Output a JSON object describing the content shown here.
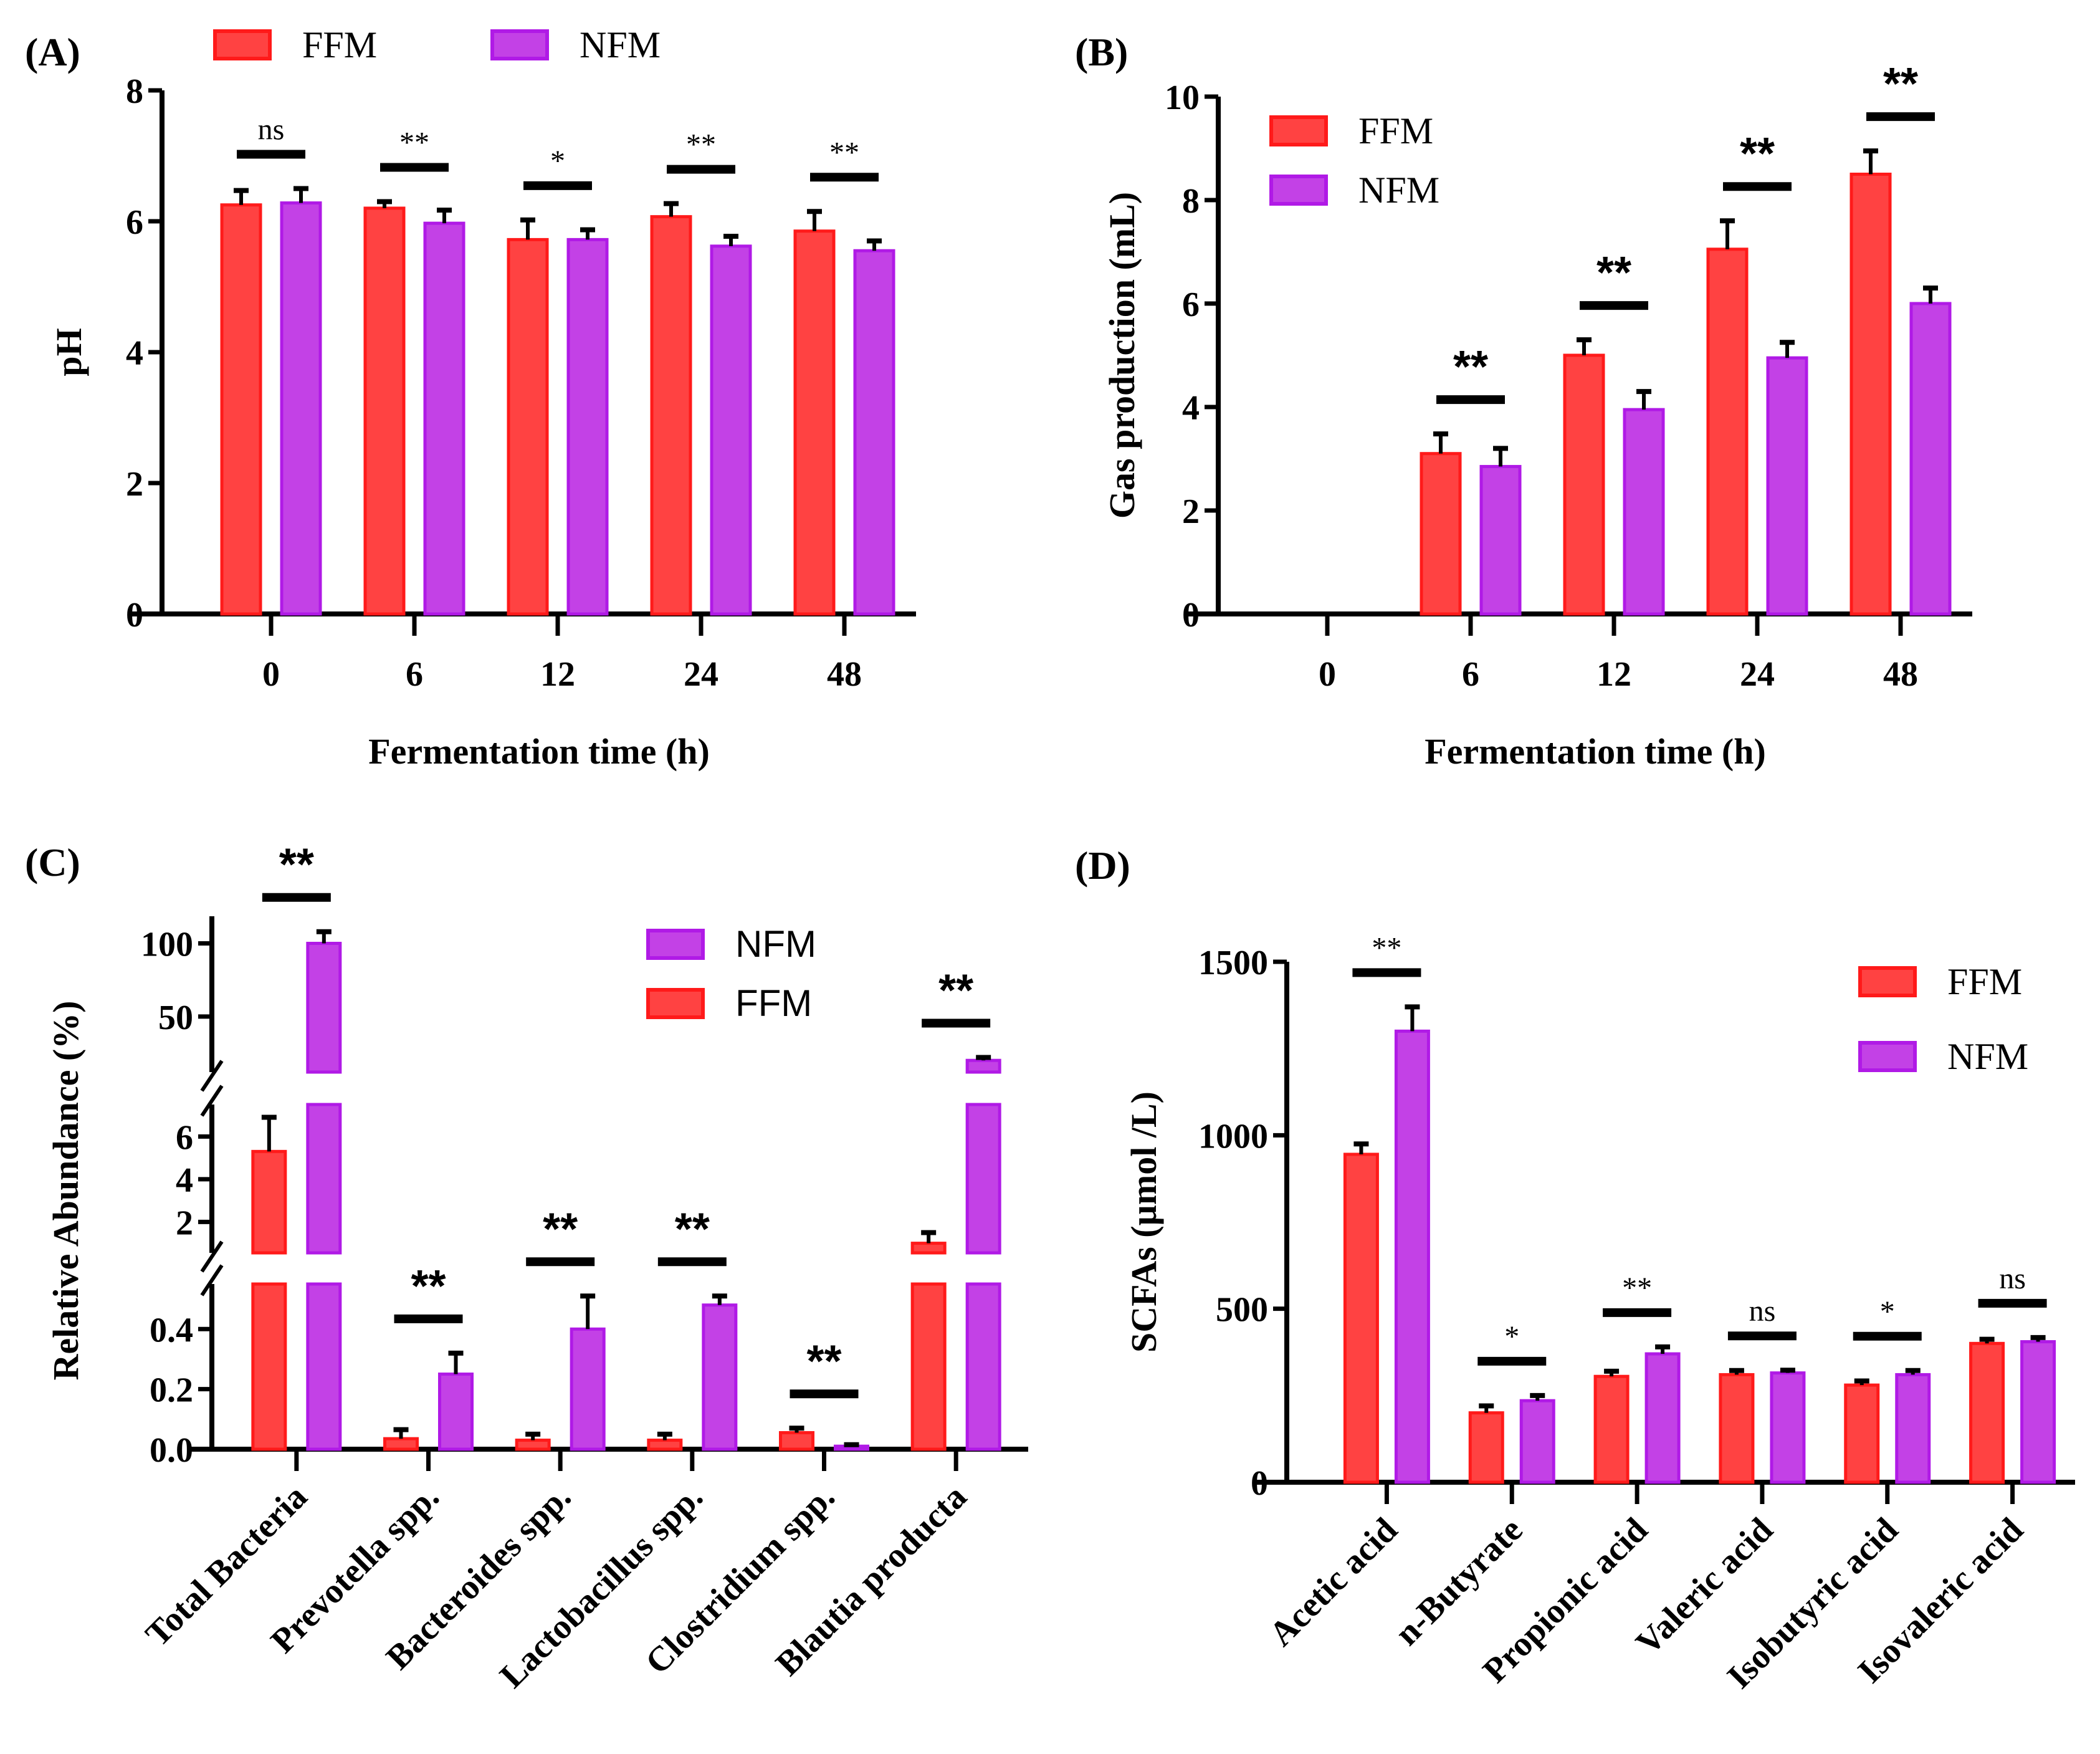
{
  "colors": {
    "FFM_fill": "#FF4242",
    "FFM_stroke": "#FF1A1A",
    "NFM_fill": "#C341E6",
    "NFM_stroke": "#B01AE6",
    "axis": "#000000"
  },
  "chart_data": [
    {
      "id": "A",
      "panel_label": "(A)",
      "type": "bar",
      "title": "",
      "xlabel": "Fermentation time (h)",
      "ylabel": "pH",
      "categories": [
        "0",
        "6",
        "12",
        "24",
        "48"
      ],
      "ylim": [
        0,
        8
      ],
      "yticks": [
        0,
        2,
        4,
        6,
        8
      ],
      "legend": {
        "placement": "top",
        "entries": [
          "FFM",
          "NFM"
        ]
      },
      "series": [
        {
          "name": "FFM",
          "values": [
            6.25,
            6.2,
            5.72,
            6.07,
            5.85
          ],
          "errors": [
            0.22,
            0.1,
            0.3,
            0.2,
            0.3
          ]
        },
        {
          "name": "NFM",
          "values": [
            6.28,
            5.97,
            5.72,
            5.62,
            5.55
          ],
          "errors": [
            0.22,
            0.2,
            0.15,
            0.15,
            0.15
          ]
        }
      ],
      "significance": [
        "ns",
        "**",
        "*",
        "**",
        "**"
      ]
    },
    {
      "id": "B",
      "panel_label": "(B)",
      "type": "bar",
      "title": "",
      "xlabel": "Fermentation time (h)",
      "ylabel": "Gas production (mL)",
      "categories": [
        "0",
        "6",
        "12",
        "24",
        "48"
      ],
      "ylim": [
        0,
        10
      ],
      "yticks": [
        0,
        2,
        4,
        6,
        8,
        10
      ],
      "legend": {
        "placement": "top-left",
        "entries": [
          "FFM",
          "NFM"
        ]
      },
      "series": [
        {
          "name": "FFM",
          "values": [
            0,
            3.1,
            5.0,
            7.05,
            8.5
          ],
          "errors": [
            0,
            0.38,
            0.3,
            0.55,
            0.45
          ]
        },
        {
          "name": "NFM",
          "values": [
            0,
            2.85,
            3.95,
            4.95,
            6.0
          ],
          "errors": [
            0,
            0.35,
            0.35,
            0.3,
            0.3
          ]
        }
      ],
      "significance": [
        "",
        "**",
        "**",
        "**",
        "**"
      ]
    },
    {
      "id": "C",
      "panel_label": "(C)",
      "type": "bar",
      "title": "",
      "xlabel": "",
      "ylabel": "Relative Abundance (%)",
      "categories": [
        "Total Bacteria",
        "Prevotella spp.",
        "Bacteroides spp.",
        "Lactobacillus spp.",
        "Clostridium spp.",
        "Blautia producta"
      ],
      "broken_axis": [
        {
          "range": [
            0,
            0.55
          ],
          "ticks": [
            "0.0",
            "0.2",
            "0.4"
          ],
          "tick_values": [
            0,
            0.2,
            0.4
          ]
        },
        {
          "range": [
            0.55,
            7.5
          ],
          "ticks": [
            "2",
            "4",
            "6"
          ],
          "tick_values": [
            2,
            4,
            6
          ]
        },
        {
          "range": [
            12,
            110
          ],
          "ticks": [
            "50",
            "100"
          ],
          "tick_values": [
            50,
            100
          ]
        }
      ],
      "legend": {
        "placement": "top-right",
        "entries": [
          "NFM",
          "FFM"
        ]
      },
      "series": [
        {
          "name": "FFM",
          "values": [
            5.3,
            0.035,
            0.03,
            0.03,
            0.055,
            1.0
          ],
          "errors": [
            1.6,
            0.03,
            0.02,
            0.02,
            0.015,
            0.5
          ]
        },
        {
          "name": "NFM",
          "values": [
            100,
            0.25,
            0.4,
            0.48,
            0.01,
            20
          ],
          "errors": [
            8,
            0.07,
            0.11,
            0.03,
            0.005,
            2
          ]
        }
      ],
      "significance": [
        "**",
        "**",
        "**",
        "**",
        "**",
        "**"
      ]
    },
    {
      "id": "D",
      "panel_label": "(D)",
      "type": "bar",
      "title": "",
      "xlabel": "",
      "ylabel": "SCFAs (µmol /L)",
      "categories": [
        "Acetic acid",
        "n-Butyrate",
        "Propionic acid",
        "Valeric acid",
        "Isobutyric acid",
        "Isovaleric acid"
      ],
      "ylim": [
        0,
        1500
      ],
      "yticks": [
        0,
        500,
        1000,
        1500
      ],
      "legend": {
        "placement": "top-right",
        "entries": [
          "FFM",
          "NFM"
        ]
      },
      "series": [
        {
          "name": "FFM",
          "values": [
            945,
            200,
            305,
            310,
            280,
            400
          ],
          "errors": [
            30,
            20,
            15,
            12,
            12,
            12
          ]
        },
        {
          "name": "NFM",
          "values": [
            1300,
            235,
            370,
            315,
            310,
            405
          ],
          "errors": [
            70,
            15,
            20,
            8,
            12,
            12
          ]
        }
      ],
      "significance": [
        "**",
        "*",
        "**",
        "ns",
        "*",
        "ns"
      ]
    }
  ]
}
